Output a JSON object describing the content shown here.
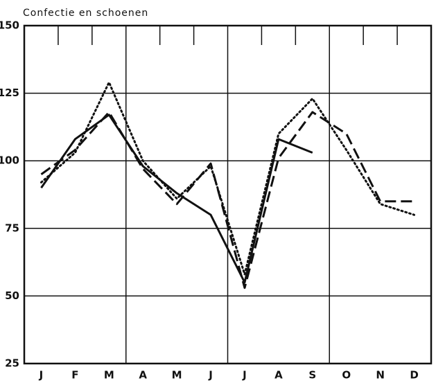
{
  "chart_data": {
    "type": "line",
    "title": "Confectie en schoenen",
    "categories": [
      "J",
      "F",
      "M",
      "A",
      "M",
      "J",
      "J",
      "A",
      "S",
      "O",
      "N",
      "D"
    ],
    "series": [
      {
        "color": "#111111",
        "dash": "solid",
        "values": [
          90,
          108,
          117,
          98,
          88,
          80,
          55,
          108,
          103,
          null,
          null,
          null
        ]
      },
      {
        "color": "#111111",
        "dash": "dashed",
        "values": [
          95,
          104,
          118,
          97,
          84,
          99,
          53,
          101,
          118,
          110,
          85,
          85
        ]
      },
      {
        "color": "#111111",
        "dash": "dotted",
        "values": [
          92,
          103,
          129,
          100,
          86,
          98,
          58,
          110,
          123,
          104,
          84,
          80
        ]
      }
    ],
    "ylim": [
      25,
      150
    ],
    "yticks": [
      25,
      50,
      75,
      100,
      125,
      150
    ],
    "grid": true
  }
}
